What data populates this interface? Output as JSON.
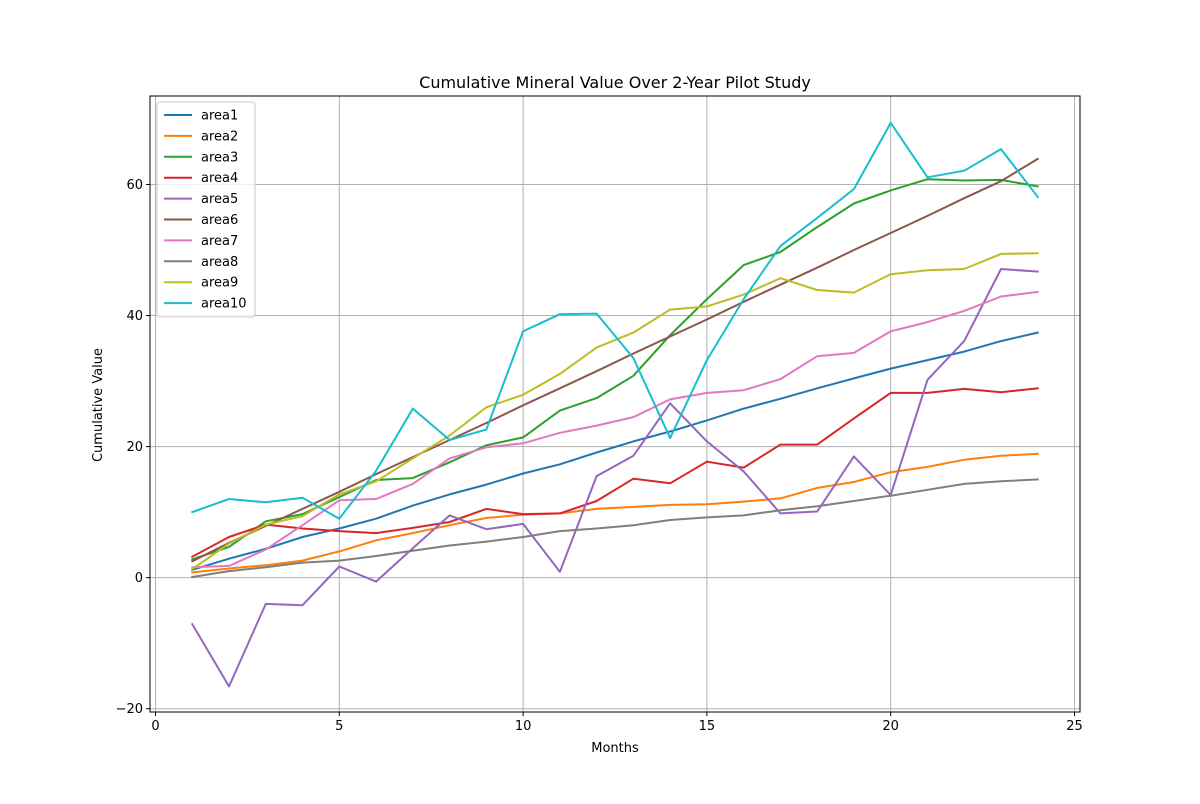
{
  "chart_data": {
    "type": "line",
    "title": "Cumulative Mineral Value Over 2-Year Pilot Study",
    "xlabel": "Months",
    "ylabel": "Cumulative Value",
    "xlim": [
      -0.15,
      25.15
    ],
    "ylim": [
      -20.5,
      73.5
    ],
    "xticks": [
      0,
      5,
      10,
      15,
      20,
      25
    ],
    "yticks": [
      -20,
      0,
      20,
      40,
      60
    ],
    "grid": true,
    "legend_position": "upper-left",
    "x": [
      1,
      2,
      3,
      4,
      5,
      6,
      7,
      8,
      9,
      10,
      11,
      12,
      13,
      14,
      15,
      16,
      17,
      18,
      19,
      20,
      21,
      22,
      23,
      24
    ],
    "series": [
      {
        "name": "area1",
        "color": "#1f77b4",
        "values": [
          1.2,
          2.9,
          4.4,
          6.2,
          7.5,
          9.0,
          11.0,
          12.7,
          14.2,
          15.9,
          17.3,
          19.1,
          20.8,
          22.3,
          24.0,
          25.8,
          27.3,
          28.9,
          30.4,
          31.9,
          33.2,
          34.5,
          36.1,
          37.4
        ]
      },
      {
        "name": "area2",
        "color": "#ff7f0e",
        "values": [
          0.8,
          1.4,
          1.9,
          2.6,
          4.0,
          5.7,
          6.8,
          8.0,
          9.1,
          9.6,
          9.8,
          10.5,
          10.8,
          11.1,
          11.2,
          11.6,
          12.1,
          13.7,
          14.6,
          16.1,
          16.9,
          18.0,
          18.6,
          18.9
        ]
      },
      {
        "name": "area3",
        "color": "#2ca02c",
        "values": [
          2.8,
          4.7,
          8.6,
          9.7,
          12.3,
          14.9,
          15.2,
          17.6,
          20.2,
          21.4,
          25.5,
          27.4,
          30.8,
          37.0,
          42.5,
          47.7,
          49.7,
          53.5,
          57.1,
          59.1,
          60.8,
          60.6,
          60.7,
          59.7
        ]
      },
      {
        "name": "area4",
        "color": "#d62728",
        "values": [
          3.2,
          6.2,
          8.1,
          7.5,
          7.1,
          6.8,
          7.6,
          8.5,
          10.5,
          9.7,
          9.8,
          11.7,
          15.1,
          14.4,
          17.7,
          16.8,
          20.3,
          20.3,
          24.3,
          28.2,
          28.2,
          28.8,
          28.3,
          28.9
        ]
      },
      {
        "name": "area5",
        "color": "#9467bd",
        "values": [
          -7.1,
          -16.6,
          -4.0,
          -4.2,
          1.7,
          -0.6,
          4.5,
          9.5,
          7.4,
          8.2,
          0.9,
          15.5,
          18.6,
          26.6,
          20.8,
          16.2,
          9.8,
          10.1,
          18.5,
          12.6,
          30.2,
          36.1,
          47.1,
          46.7
        ]
      },
      {
        "name": "area6",
        "color": "#8c564b",
        "values": [
          2.5,
          5.3,
          7.9,
          10.5,
          13.1,
          15.8,
          18.4,
          21.0,
          23.6,
          26.3,
          28.9,
          31.5,
          34.2,
          36.8,
          39.4,
          42.1,
          44.7,
          47.3,
          50.0,
          52.6,
          55.2,
          57.9,
          60.5,
          63.9
        ]
      },
      {
        "name": "area7",
        "color": "#e377c2",
        "values": [
          1.6,
          1.8,
          4.3,
          8.0,
          11.8,
          12.0,
          14.3,
          18.2,
          19.9,
          20.5,
          22.1,
          23.2,
          24.5,
          27.2,
          28.2,
          28.6,
          30.3,
          33.8,
          34.3,
          37.6,
          39.0,
          40.7,
          42.9,
          43.6
        ]
      },
      {
        "name": "area8",
        "color": "#7f7f7f",
        "values": [
          0.1,
          1.0,
          1.6,
          2.3,
          2.6,
          3.3,
          4.1,
          4.9,
          5.5,
          6.2,
          7.1,
          7.5,
          8.0,
          8.8,
          9.2,
          9.5,
          10.3,
          10.9,
          11.7,
          12.5,
          13.4,
          14.3,
          14.7,
          15.0
        ]
      },
      {
        "name": "area9",
        "color": "#bcbd22",
        "values": [
          1.3,
          5.2,
          8.1,
          9.4,
          12.7,
          14.7,
          18.2,
          21.7,
          26.0,
          27.9,
          31.1,
          35.1,
          37.4,
          40.9,
          41.4,
          43.2,
          45.7,
          43.9,
          43.5,
          46.3,
          46.9,
          47.1,
          49.4,
          49.5
        ]
      },
      {
        "name": "area10",
        "color": "#17becf",
        "values": [
          10.0,
          12.0,
          11.5,
          12.2,
          9.0,
          16.3,
          25.8,
          21.0,
          22.6,
          37.6,
          40.2,
          40.3,
          33.5,
          21.3,
          33.2,
          42.5,
          50.6,
          54.9,
          59.3,
          69.4,
          61.1,
          62.1,
          65.4,
          58.1
        ]
      }
    ]
  }
}
